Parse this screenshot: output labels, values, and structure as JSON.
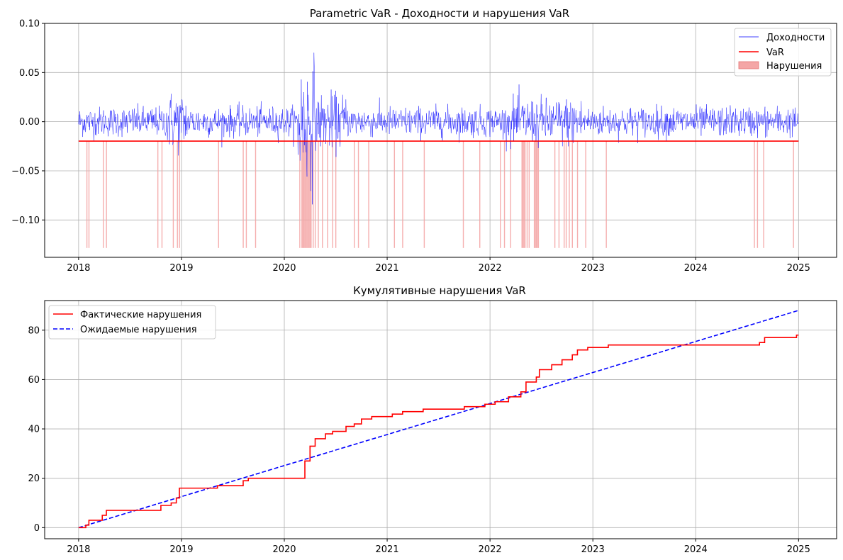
{
  "chart_data": [
    {
      "type": "line",
      "title": "Parametric VaR - Доходности и нарушения VaR",
      "xlabel": "",
      "ylabel": "",
      "xlim": [
        2017.67,
        2025.37
      ],
      "ylim": [
        -0.138,
        0.1
      ],
      "x_ticks": [
        "2018",
        "2019",
        "2020",
        "2021",
        "2022",
        "2023",
        "2024",
        "2025"
      ],
      "y_ticks": [
        "0.10",
        "0.05",
        "0.00",
        "−0.05",
        "−0.10"
      ],
      "y_tick_values": [
        0.1,
        0.05,
        0.0,
        -0.05,
        -0.1
      ],
      "grid": true,
      "legend_position": "top-right",
      "series": [
        {
          "name": "Доходности",
          "color": "#0000ff",
          "style": "thin-line",
          "note_range": [
            2018.0,
            2025.0
          ]
        },
        {
          "name": "VaR",
          "color": "#ff0000",
          "style": "line",
          "x": [
            2018.0,
            2025.0
          ],
          "values": [
            -0.0198,
            -0.0198
          ]
        },
        {
          "name": "Нарушения",
          "color": "#f4a6a6",
          "style": "fill",
          "x": [
            2018.08,
            2018.1,
            2018.24,
            2018.27,
            2018.77,
            2018.81,
            2018.92,
            2018.96,
            2018.98,
            2019.36,
            2019.6,
            2019.63,
            2019.72,
            2020.15,
            2020.17,
            2020.18,
            2020.19,
            2020.2,
            2020.21,
            2020.22,
            2020.23,
            2020.24,
            2020.25,
            2020.26,
            2020.28,
            2020.3,
            2020.33,
            2020.37,
            2020.42,
            2020.47,
            2020.5,
            2020.68,
            2020.72,
            2020.82,
            2021.07,
            2021.15,
            2021.36,
            2021.74,
            2021.9,
            2022.1,
            2022.14,
            2022.2,
            2022.31,
            2022.32,
            2022.33,
            2022.34,
            2022.36,
            2022.38,
            2022.43,
            2022.44,
            2022.45,
            2022.46,
            2022.47,
            2022.63,
            2022.67,
            2022.72,
            2022.74,
            2022.77,
            2022.8,
            2022.85,
            2022.93,
            2023.13,
            2024.57,
            2024.6,
            2024.66,
            2024.95
          ]
        }
      ]
    },
    {
      "type": "line",
      "title": "Кумулятивные нарушения VaR",
      "xlabel": "",
      "ylabel": "",
      "xlim": [
        2017.67,
        2025.37
      ],
      "ylim": [
        -4.5,
        92
      ],
      "x_ticks": [
        "2018",
        "2019",
        "2020",
        "2021",
        "2022",
        "2023",
        "2024",
        "2025"
      ],
      "y_ticks": [
        "0",
        "20",
        "40",
        "60",
        "80"
      ],
      "y_tick_values": [
        0,
        20,
        40,
        60,
        80
      ],
      "grid": true,
      "legend_position": "top-left",
      "series": [
        {
          "name": "Фактические нарушения",
          "color": "#ff0000",
          "style": "step",
          "x": [
            2018.0,
            2018.07,
            2018.1,
            2018.23,
            2018.27,
            2018.75,
            2018.8,
            2018.9,
            2018.95,
            2018.98,
            2019.35,
            2019.6,
            2019.65,
            2020.15,
            2020.2,
            2020.25,
            2020.3,
            2020.4,
            2020.47,
            2020.6,
            2020.68,
            2020.75,
            2020.85,
            2021.05,
            2021.15,
            2021.35,
            2021.75,
            2021.95,
            2022.05,
            2022.18,
            2022.3,
            2022.35,
            2022.45,
            2022.48,
            2022.6,
            2022.7,
            2022.8,
            2022.85,
            2022.95,
            2023.15,
            2024.55,
            2024.62,
            2024.67,
            2024.98,
            2025.0
          ],
          "values": [
            0,
            1,
            3,
            5,
            7,
            7,
            9,
            10,
            12,
            16,
            17,
            19,
            20,
            20,
            27,
            33,
            36,
            38,
            39,
            41,
            42,
            44,
            45,
            46,
            47,
            48,
            49,
            50,
            51,
            53,
            55,
            59,
            61,
            64,
            66,
            68,
            70,
            72,
            73,
            74,
            74,
            75,
            77,
            78,
            78
          ]
        },
        {
          "name": "Ожидаемые нарушения",
          "color": "#0000ff",
          "style": "dashed",
          "x": [
            2018.0,
            2025.0
          ],
          "values": [
            0,
            88
          ]
        }
      ]
    }
  ]
}
